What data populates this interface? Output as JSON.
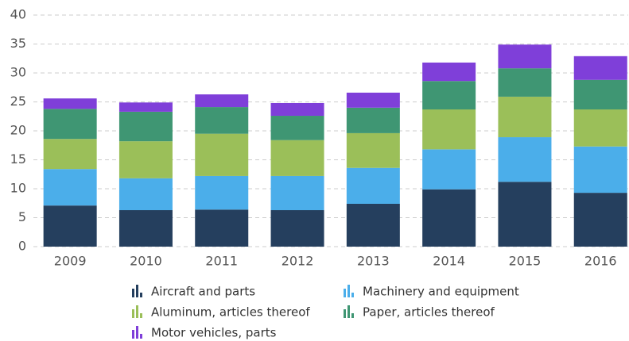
{
  "chart_data": {
    "type": "stacked_bar",
    "categories": [
      "2009",
      "2010",
      "2011",
      "2012",
      "2013",
      "2014",
      "2015",
      "2016"
    ],
    "series": [
      {
        "name": "Aircraft and parts",
        "color": "#253f5e",
        "values": [
          7.1,
          6.3,
          6.4,
          6.3,
          7.4,
          9.9,
          11.2,
          9.3
        ]
      },
      {
        "name": "Machinery and equipment",
        "color": "#4baeea",
        "values": [
          6.3,
          5.5,
          5.8,
          5.9,
          6.2,
          6.9,
          7.7,
          8.0
        ]
      },
      {
        "name": "Aluminum, articles thereof",
        "color": "#9bbf59",
        "values": [
          5.2,
          6.4,
          7.3,
          6.2,
          6.0,
          6.9,
          7.0,
          6.4
        ]
      },
      {
        "name": "Paper, articles thereof",
        "color": "#3f9673",
        "values": [
          5.2,
          5.1,
          4.6,
          4.2,
          4.4,
          4.9,
          4.9,
          5.1
        ]
      },
      {
        "name": "Motor vehicles, parts",
        "color": "#7f3fd9",
        "values": [
          1.8,
          1.6,
          2.2,
          2.2,
          2.6,
          3.2,
          4.1,
          4.1
        ]
      }
    ],
    "ylim": [
      0,
      40
    ],
    "yticks": [
      0,
      5,
      10,
      15,
      20,
      25,
      30,
      35,
      40
    ],
    "grid": true
  }
}
